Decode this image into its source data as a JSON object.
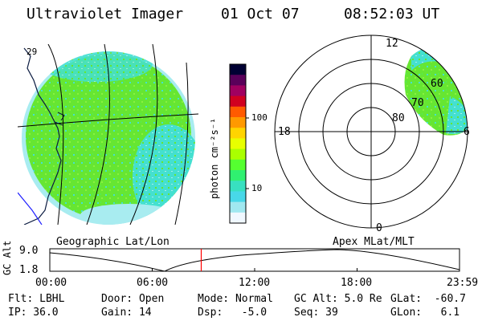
{
  "header": {
    "title": "Ultraviolet Imager",
    "date": "01 Oct 07",
    "time": "08:52:03 UT"
  },
  "geo_panel": {
    "caption": "Geographic Lat/Lon",
    "coast_lat_label": "29"
  },
  "colorbar": {
    "label": "photon cm⁻²s⁻¹",
    "ticks": [
      "100",
      "10"
    ],
    "colors": [
      "#000033",
      "#5a005a",
      "#a00060",
      "#d00020",
      "#ff5a00",
      "#ff9900",
      "#ffd400",
      "#e8ff00",
      "#aaff00",
      "#55ff30",
      "#30f070",
      "#38e0c0",
      "#48d8e8",
      "#a0e8f0",
      "#f0f8ff"
    ]
  },
  "polar_panel": {
    "caption": "Apex MLat/MLT",
    "mlt_labels": [
      "12",
      "18",
      "6",
      "0"
    ],
    "lat_labels": [
      "60",
      "70",
      "80"
    ]
  },
  "alt_plot": {
    "ylabel": "GC Alt",
    "yticks": [
      "9.0",
      "1.8"
    ],
    "xticks": [
      "00:00",
      "06:00",
      "12:00",
      "18:00",
      "23:59"
    ],
    "current_time_hours": 8.87,
    "marker_color": "#ff0000"
  },
  "info": {
    "flt": "Flt: LBHL",
    "ip": "IP: 36.0",
    "door": "Door: Open",
    "gain": "Gain: 14",
    "mode": "Mode: Normal",
    "dsp": "Dsp:   -5.0",
    "gcalt": "GC Alt: 5.0 Re",
    "seq": "Seq: 39",
    "glat": "GLat:  -60.7",
    "glon": "GLon:   6.1"
  },
  "palette": {
    "green_main": "#66e632",
    "cyan_speckle": "#44e0d0",
    "light_cyan": "#a8ecf0"
  }
}
